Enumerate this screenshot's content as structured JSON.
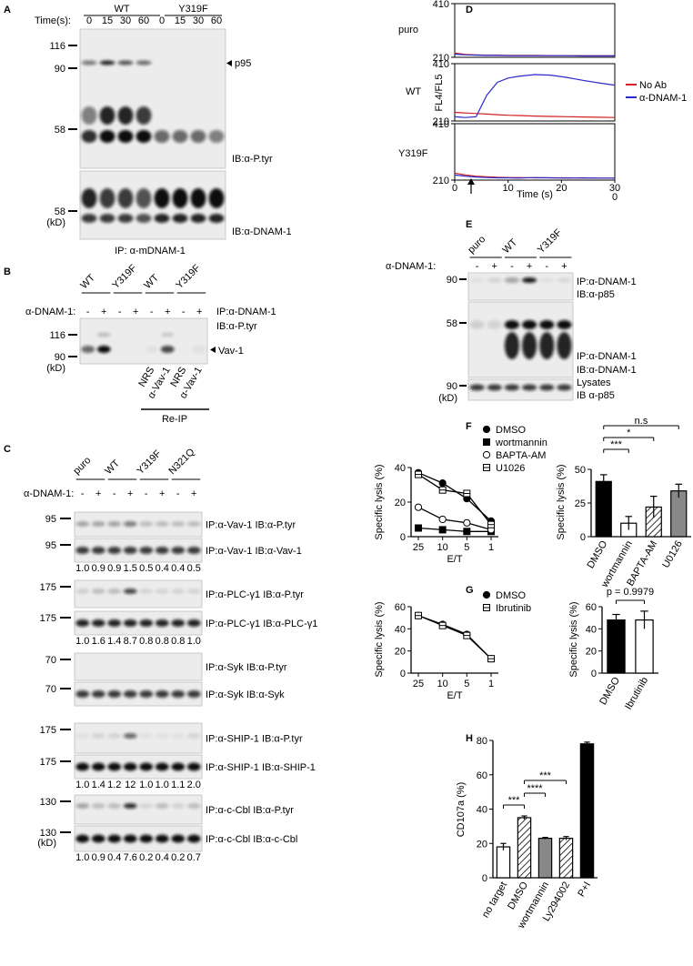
{
  "panel_letters": [
    "A",
    "B",
    "C",
    "D",
    "E",
    "F",
    "G",
    "H"
  ],
  "A": {
    "time_label": "Time(s):",
    "groups": [
      "WT",
      "Y319F"
    ],
    "times": [
      "0",
      "15",
      "30",
      "60",
      "0",
      "15",
      "30",
      "60"
    ],
    "mw_top": [
      "116",
      "90",
      "58"
    ],
    "mw_bottom": [
      "58",
      "(kD)"
    ],
    "band": "p95",
    "ib_top": "IB:α-P.tyr",
    "ib_bottom": "IB:α-DNAM-1",
    "ip": "IP: α-mDNAM-1"
  },
  "B": {
    "groups": [
      "WT",
      "Y319F",
      "WT",
      "Y319F"
    ],
    "treatment": "α-DNAM-1:",
    "signs": [
      "-",
      "+",
      "-",
      "+",
      "-",
      "+",
      "-",
      "+"
    ],
    "ip": "IP:α-DNAM-1",
    "ib": "IB:α-P.tyr",
    "mw": [
      "116",
      "90",
      "(kD)"
    ],
    "band": "Vav-1",
    "reip_lanes": [
      "NRS",
      "α-Vav-1",
      "NRS",
      "α-Vav-1"
    ],
    "reip": "Re-IP"
  },
  "C": {
    "groups": [
      "puro",
      "WT",
      "Y319F",
      "N321Q"
    ],
    "treatment": "α-DNAM-1:",
    "signs": [
      "-",
      "+",
      "-",
      "+",
      "-",
      "+",
      "-",
      "+"
    ],
    "unit": "(kD)",
    "blots": [
      {
        "mw": "95",
        "label": "IP:α-Vav-1 IB:α-P.tyr"
      },
      {
        "mw": "95",
        "label": "IP:α-Vav-1 IB:α-Vav-1",
        "quant": [
          "1.0",
          "0.9",
          "0.9",
          "1.5",
          "0.5",
          "0.4",
          "0.4",
          "0.5"
        ]
      },
      {
        "mw": "175",
        "label": "IP:α-PLC-γ1 IB:α-P.tyr"
      },
      {
        "mw": "175",
        "label": "IP:α-PLC-γ1 IB:α-PLC-γ1",
        "quant": [
          "1.0",
          "1.6",
          "1.4",
          "8.7",
          "0.8",
          "0.8",
          "0.8",
          "1.0"
        ]
      },
      {
        "mw": "70",
        "label": "IP:α-Syk IB:α-P.tyr"
      },
      {
        "mw": "70",
        "label": "IP:α-Syk IB:α-Syk"
      },
      {
        "mw": "175",
        "label": "IP:α-SHIP-1 IB:α-P.tyr"
      },
      {
        "mw": "175",
        "label": "IP:α-SHIP-1 IB:α-SHIP-1",
        "quant": [
          "1.0",
          "1.4",
          "1.2",
          "12",
          "1.0",
          "1.0",
          "1.1",
          "2.0"
        ]
      },
      {
        "mw": "130",
        "label": "IP:α-c-Cbl IB:α-P.tyr"
      },
      {
        "mw": "130",
        "label": "IP:α-c-Cbl IB:α-c-Cbl",
        "quant": [
          "1.0",
          "0.9",
          "0.4",
          "7.6",
          "0.2",
          "0.4",
          "0.2",
          "0.7"
        ]
      }
    ]
  },
  "E": {
    "groups": [
      "puro",
      "WT",
      "Y319F"
    ],
    "treatment": "α-DNAM-1:",
    "signs": [
      "-",
      "+",
      "-",
      "+",
      "-",
      "+"
    ],
    "blots": [
      {
        "mw": [
          "90"
        ],
        "labels": [
          "IP:α-DNAM-1",
          "IB:α-p85"
        ]
      },
      {
        "mw": [
          "58"
        ],
        "labels": [
          "IP:α-DNAM-1",
          "IB:α-DNAM-1"
        ]
      },
      {
        "mw": [
          "90",
          "(kD)"
        ],
        "labels": [
          "Lysates",
          "IB α-p85"
        ]
      }
    ]
  },
  "chart_data": [
    {
      "type": "line",
      "label": "puro",
      "x": [
        0,
        2,
        4,
        6,
        8,
        10,
        12,
        15,
        18,
        21,
        24,
        27,
        30
      ],
      "xlim": [
        0,
        30
      ],
      "ylim": [
        210,
        410
      ],
      "yticks": [
        210,
        410
      ],
      "series": [
        {
          "color": "#d42020",
          "values": [
            226,
            221,
            219,
            218,
            218,
            217,
            217,
            217,
            216,
            216,
            216,
            216,
            216
          ]
        },
        {
          "color": "#2a2acc",
          "values": [
            222,
            219,
            218,
            217,
            217,
            216,
            216,
            216,
            216,
            216,
            215,
            215,
            215
          ]
        }
      ]
    },
    {
      "type": "line",
      "label": "WT",
      "ylabel": "FL4/FL5",
      "x": [
        0,
        2,
        4,
        6,
        8,
        10,
        12,
        15,
        18,
        21,
        24,
        27,
        30
      ],
      "xlim": [
        0,
        30
      ],
      "ylim": [
        210,
        410
      ],
      "yticks": [
        210,
        410
      ],
      "series": [
        {
          "name": "No Ab",
          "color": "#d42020",
          "values": [
            240,
            238,
            236,
            234,
            232,
            230,
            229,
            227,
            226,
            225,
            224,
            223,
            222
          ]
        },
        {
          "name": "α-DNAM-1",
          "color": "#2a2acc",
          "values": [
            225,
            222,
            225,
            300,
            345,
            360,
            366,
            372,
            370,
            362,
            352,
            343,
            335
          ]
        }
      ]
    },
    {
      "type": "line",
      "label": "Y319F",
      "xlabel": "Time (s)",
      "x": [
        0,
        2,
        4,
        6,
        8,
        10,
        12,
        15,
        18,
        21,
        24,
        27,
        30
      ],
      "xlim": [
        0,
        30
      ],
      "xticks": [
        0,
        10,
        20,
        30
      ],
      "xtick_wrap": "0",
      "ylim": [
        210,
        410
      ],
      "yticks": [
        210,
        410
      ],
      "series": [
        {
          "color": "#d42020",
          "values": [
            235,
            228,
            224,
            222,
            220,
            219,
            219,
            218,
            218,
            218,
            217,
            217,
            217
          ]
        },
        {
          "color": "#2a2acc",
          "values": [
            228,
            224,
            221,
            219,
            218,
            218,
            217,
            219,
            218,
            217,
            218,
            217,
            217
          ]
        }
      ]
    },
    {
      "type": "line",
      "categories": [
        "25",
        "10",
        "5",
        "1"
      ],
      "xlabel": "E/T",
      "ylabel": "Specific lysis (%)",
      "ylim": [
        0,
        40
      ],
      "yticks": [
        0,
        20,
        40
      ],
      "series": [
        {
          "name": "DMSO",
          "color": "#000000",
          "marker": "circle",
          "values": [
            37,
            31,
            22,
            9
          ]
        },
        {
          "name": "wortmannin",
          "color": "#000000",
          "marker": "square",
          "values": [
            5,
            4,
            3,
            3
          ]
        },
        {
          "name": "BAPTA-AM",
          "color": "#000000",
          "marker": "circle-open",
          "values": [
            17,
            10,
            8,
            4
          ]
        },
        {
          "name": "U1026",
          "color": "#000000",
          "marker": "square-open",
          "values": [
            36,
            27,
            25,
            7
          ]
        }
      ]
    },
    {
      "type": "bar",
      "categories": [
        "DMSO",
        "wortmannin",
        "BAPTA-AM",
        "U0126"
      ],
      "ylabel": "Specific lysis (%)",
      "values": [
        41,
        10,
        22,
        34
      ],
      "errors": [
        5,
        5,
        8,
        5
      ],
      "fills": [
        "#000000",
        "#ffffff",
        "hatch",
        "#888888"
      ],
      "ylim": [
        0,
        50
      ],
      "yticks": [
        0,
        25,
        50
      ],
      "annotations": [
        "n.s",
        "*",
        "***"
      ]
    },
    {
      "type": "line",
      "categories": [
        "25",
        "10",
        "5",
        "1"
      ],
      "xlabel": "E/T",
      "ylabel": "Specific lysis (%)",
      "ylim": [
        0,
        60
      ],
      "yticks": [
        0,
        20,
        40,
        60
      ],
      "series": [
        {
          "name": "DMSO",
          "color": "#000000",
          "marker": "circle",
          "values": [
            52,
            44,
            35,
            13
          ]
        },
        {
          "name": "Ibrutinib",
          "color": "#000000",
          "marker": "square-open",
          "values": [
            52,
            43,
            34,
            13
          ]
        }
      ]
    },
    {
      "type": "bar",
      "categories": [
        "DMSO",
        "Ibrutinib"
      ],
      "ylabel": "Specific lysis (%)",
      "values": [
        48,
        48
      ],
      "errors": [
        5,
        8
      ],
      "fills": [
        "#000000",
        "#ffffff"
      ],
      "ylim": [
        0,
        60
      ],
      "yticks": [
        0,
        20,
        40,
        60
      ],
      "annotations": [
        "p = 0.9979"
      ]
    },
    {
      "type": "bar",
      "categories": [
        "no target",
        "DMSO",
        "wortmannin",
        "Ly294002",
        "P+I"
      ],
      "ylabel": "CD107a (%)",
      "values": [
        18,
        35,
        23,
        23,
        78
      ],
      "errors": [
        2,
        1,
        0.5,
        1,
        1
      ],
      "fills": [
        "#ffffff",
        "hatch",
        "#888888",
        "hatch",
        "#000000"
      ],
      "ylim": [
        0,
        80
      ],
      "yticks": [
        0,
        20,
        40,
        60,
        80
      ],
      "annotations": [
        "***",
        "****",
        "***"
      ]
    }
  ]
}
